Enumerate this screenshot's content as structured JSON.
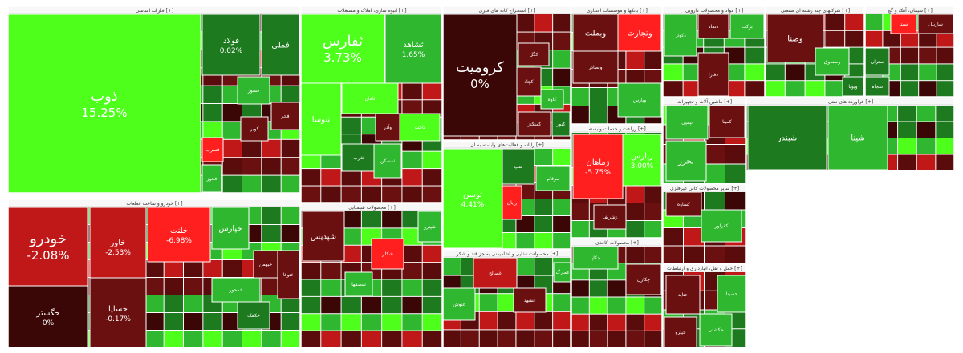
{
  "chart_data": {
    "type": "treemap",
    "colors": {
      "strong_up": "#4dff1a",
      "up": "#2fb82f",
      "mild_up": "#1e7a1e",
      "mild_down": "#6b1010",
      "down": "#c01818",
      "strong_down": "#ff1f1f",
      "neutral": "#3a0606"
    },
    "sectors": [
      {
        "name": "فلزات اساسی [+]",
        "tiles": [
          {
            "symbol": "ذوب",
            "change": "15.25%",
            "tone": "strong_up"
          },
          {
            "symbol": "فولاد",
            "change": "0.02%",
            "tone": "mild_up"
          },
          {
            "symbol": "فملی",
            "change": "",
            "tone": "mild_up"
          },
          {
            "symbol": "فسوژ",
            "change": "",
            "tone": "up"
          },
          {
            "symbol": "فجر",
            "change": "",
            "tone": "mild_down"
          },
          {
            "symbol": "کویر",
            "change": "",
            "tone": "mild_down"
          },
          {
            "symbol": "فسرب",
            "change": "",
            "tone": "strong_down"
          },
          {
            "symbol": "فخوز",
            "change": "",
            "tone": "up"
          }
        ]
      },
      {
        "name": "خودرو و ساخت قطعات [+]",
        "tiles": [
          {
            "symbol": "خودرو",
            "change": "-2.08%",
            "tone": "down"
          },
          {
            "symbol": "خاور",
            "change": "-2.53%",
            "tone": "down"
          },
          {
            "symbol": "خلنت",
            "change": "-6.98%",
            "tone": "strong_down"
          },
          {
            "symbol": "خگستر",
            "change": "0%",
            "tone": "neutral"
          },
          {
            "symbol": "خساپا",
            "change": "-0.17%",
            "tone": "mild_down"
          },
          {
            "symbol": "خپارس",
            "change": "",
            "tone": "up"
          },
          {
            "symbol": "خمحور",
            "change": "",
            "tone": "up"
          },
          {
            "symbol": "خبهمن",
            "change": "",
            "tone": "mild_down"
          },
          {
            "symbol": "خکمک",
            "change": "",
            "tone": "mild_up"
          },
          {
            "symbol": "ختوقا",
            "change": "",
            "tone": "mild_down"
          }
        ]
      },
      {
        "name": "انبوه سازی، املاک و مستغلات [+]",
        "tiles": [
          {
            "symbol": "ثفارس",
            "change": "3.73%",
            "tone": "strong_up"
          },
          {
            "symbol": "ثشاهد",
            "change": "1.65%",
            "tone": "up"
          },
          {
            "symbol": "ثنوسا",
            "change": "",
            "tone": "strong_up"
          },
          {
            "symbol": "ثامان",
            "change": "",
            "tone": "strong_up"
          },
          {
            "symbol": "وآذر",
            "change": "",
            "tone": "mild_down"
          },
          {
            "symbol": "ثاخت",
            "change": "",
            "tone": "strong_up"
          },
          {
            "symbol": "ثغرب",
            "change": "",
            "tone": "mild_up"
          },
          {
            "symbol": "ثمسکن",
            "change": "",
            "tone": "up"
          }
        ]
      },
      {
        "name": "استخراج کانه های فلزی [+]",
        "tiles": [
          {
            "symbol": "کرومیت",
            "change": "0%",
            "tone": "neutral"
          },
          {
            "symbol": "کگل",
            "change": "",
            "tone": "mild_down"
          },
          {
            "symbol": "کچاد",
            "change": "",
            "tone": "mild_down"
          },
          {
            "symbol": "کاوه",
            "change": "",
            "tone": "up"
          },
          {
            "symbol": "کمنگنز",
            "change": "",
            "tone": "mild_down"
          },
          {
            "symbol": "کنور",
            "change": "",
            "tone": "mild_up"
          }
        ]
      },
      {
        "name": "رایانه و فعالیت‌های وابسته به آن [+]",
        "tiles": [
          {
            "symbol": "توسن",
            "change": "4.41%",
            "tone": "strong_up"
          },
          {
            "symbol": "رایان",
            "change": "",
            "tone": "strong_down"
          },
          {
            "symbol": "سپ",
            "change": "",
            "tone": "mild_up"
          },
          {
            "symbol": "مرقام",
            "change": "",
            "tone": "up"
          }
        ]
      },
      {
        "name": "بانکها و موسسات اعتباری [+]",
        "tiles": [
          {
            "symbol": "وبملت",
            "change": "",
            "tone": "mild_down"
          },
          {
            "symbol": "وتجارت",
            "change": "",
            "tone": "strong_down"
          },
          {
            "symbol": "وبصادر",
            "change": "",
            "tone": "mild_down"
          },
          {
            "symbol": "وپارس",
            "change": "",
            "tone": "up"
          }
        ]
      },
      {
        "name": "زراعت و خدمات وابسته [+]",
        "tiles": [
          {
            "symbol": "زماهان",
            "change": "-5.75%",
            "tone": "strong_down"
          },
          {
            "symbol": "زپارس",
            "change": "3.00%",
            "tone": "strong_up"
          },
          {
            "symbol": "زشریف",
            "change": "",
            "tone": "mild_down"
          }
        ]
      },
      {
        "name": "مواد و محصولات دارویی [+]",
        "tiles": [
          {
            "symbol": "دکوثر",
            "change": "",
            "tone": "up"
          },
          {
            "symbol": "دتماد",
            "change": "",
            "tone": "mild_down"
          },
          {
            "symbol": "برکت",
            "change": "",
            "tone": "up"
          },
          {
            "symbol": "دفارا",
            "change": "",
            "tone": "mild_down"
          }
        ]
      },
      {
        "name": "شرکتهای چند رشته ای صنعتی [+]",
        "tiles": [
          {
            "symbol": "وصنا",
            "change": "",
            "tone": "mild_down"
          },
          {
            "symbol": "وصندوق",
            "change": "",
            "tone": "up"
          },
          {
            "symbol": "وپویا",
            "change": "",
            "tone": "mild_up"
          }
        ]
      },
      {
        "name": "سیمان، آهک و گچ [+]",
        "tiles": [
          {
            "symbol": "سیتا",
            "change": "",
            "tone": "strong_down"
          },
          {
            "symbol": "ساربیل",
            "change": "",
            "tone": "mild_down"
          },
          {
            "symbol": "سجام",
            "change": "",
            "tone": "mild_up"
          },
          {
            "symbol": "ستران",
            "change": "",
            "tone": "mild_up"
          }
        ]
      },
      {
        "name": "محصولات شیمیایی [+]",
        "tiles": [
          {
            "symbol": "شپدیس",
            "change": "",
            "tone": "mild_down"
          },
          {
            "symbol": "شپترو",
            "change": "",
            "tone": "up"
          },
          {
            "symbol": "شکلر",
            "change": "",
            "tone": "strong_down"
          },
          {
            "symbol": "شصفها",
            "change": "",
            "tone": "up"
          }
        ]
      },
      {
        "name": "محصولات غذایی و آشامیدنی به جز قند و شکر [+]",
        "tiles": [
          {
            "symbol": "غصالح",
            "change": "",
            "tone": "down"
          },
          {
            "symbol": "غنوش",
            "change": "",
            "tone": "up"
          },
          {
            "symbol": "غشهد",
            "change": "",
            "tone": "mild_down"
          },
          {
            "symbol": "غمارگ",
            "change": "",
            "tone": "up"
          }
        ]
      },
      {
        "name": "محصولات کاغذی [+]",
        "tiles": [
          {
            "symbol": "چکاپا",
            "change": "",
            "tone": "up"
          },
          {
            "symbol": "چکارن",
            "change": "",
            "tone": "mild_down"
          }
        ]
      },
      {
        "name": "حمل و نقل، انبارداری و ارتباطات [+]",
        "tiles": [
          {
            "symbol": "حتاید",
            "change": "",
            "tone": "mild_down"
          },
          {
            "symbol": "حکشتی",
            "change": "",
            "tone": "up"
          },
          {
            "symbol": "حسینا",
            "change": "",
            "tone": "up"
          },
          {
            "symbol": "حپترو",
            "change": "",
            "tone": "mild_down"
          }
        ]
      },
      {
        "name": "ماشین آلات و تجهیزات [+]",
        "tiles": [
          {
            "symbol": "تپمپی",
            "change": "",
            "tone": "up"
          },
          {
            "symbol": "کمینا",
            "change": "",
            "tone": "mild_down"
          },
          {
            "symbol": "لخزر",
            "change": "",
            "tone": "up"
          }
        ]
      },
      {
        "name": "سایر محصولات کانی غیرفلزی [+]",
        "tiles": [
          {
            "symbol": "کساوه",
            "change": "",
            "tone": "mild_down"
          },
          {
            "symbol": "کفرآور",
            "change": "",
            "tone": "up"
          }
        ]
      },
      {
        "name": "فراورده های نفتی [+]",
        "tiles": [
          {
            "symbol": "شبندر",
            "change": "",
            "tone": "mild_up"
          },
          {
            "symbol": "شپنا",
            "change": "",
            "tone": "up"
          }
        ]
      }
    ]
  }
}
